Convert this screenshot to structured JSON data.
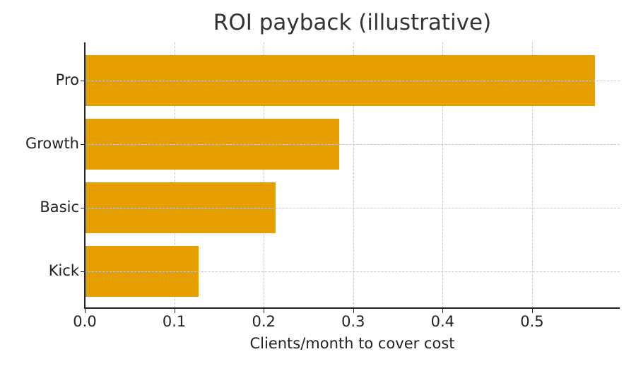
{
  "chart_data": {
    "type": "bar",
    "orientation": "horizontal",
    "title": "ROI payback (illustrative)",
    "xlabel": "Clients/month to cover cost",
    "ylabel": "",
    "categories": [
      "Pro",
      "Growth",
      "Basic",
      "Kick"
    ],
    "values": [
      0.57,
      0.284,
      0.213,
      0.127
    ],
    "xlim": [
      0.0,
      0.598
    ],
    "x_ticks": [
      "0.0",
      "0.1",
      "0.2",
      "0.3",
      "0.4",
      "0.5"
    ],
    "grid": true,
    "bar_color": "#E69F00",
    "legend": null
  },
  "colors": {
    "bar": "#E69F00",
    "grid": "#c8c8c8",
    "axis": "#222222"
  }
}
